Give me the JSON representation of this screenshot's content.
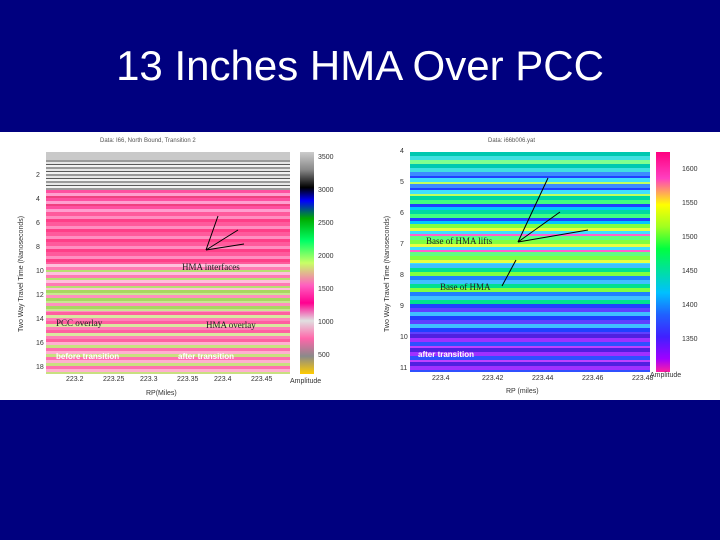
{
  "slide": {
    "title": "13 Inches HMA Over PCC"
  },
  "left_figure": {
    "caption": "Data: I66, North Bound, Transition 2",
    "ylabel": "Two Way Travel Time (Nanoseconds)",
    "xlabel": "RP(Miles)",
    "yticks": [
      "2",
      "4",
      "6",
      "8",
      "10",
      "12",
      "14",
      "16",
      "18"
    ],
    "xticks": [
      "223.2",
      "223.25",
      "223.3",
      "223.35",
      "223.4",
      "223.45"
    ],
    "colorbar_ticks": [
      "3500",
      "3000",
      "2500",
      "2000",
      "1500",
      "1000",
      "500"
    ],
    "colorbar_label": "Amplitude",
    "annotations": {
      "hma_interfaces": "HMA interfaces",
      "pcc_overlay": "PCC overlay",
      "hma_overlay": "HMA overlay",
      "before_transition": "before transition",
      "after_transition": "after transition"
    }
  },
  "right_figure": {
    "caption": "Data: i66b006.yat",
    "ylabel": "Two Way Travel Time (Nanoseconds)",
    "xlabel": "RP (miles)",
    "yticks": [
      "4",
      "5",
      "6",
      "7",
      "8",
      "9",
      "10",
      "11"
    ],
    "xticks": [
      "223.4",
      "223.42",
      "223.44",
      "223.46",
      "223.48"
    ],
    "colorbar_ticks": [
      "1600",
      "1550",
      "1500",
      "1450",
      "1400",
      "1350"
    ],
    "colorbar_label": "Amplitude",
    "annotations": {
      "base_of_hma_lifts": "Base of HMA lifts",
      "base_of_hma": "Base of HMA",
      "after_transition": "after transition"
    }
  }
}
